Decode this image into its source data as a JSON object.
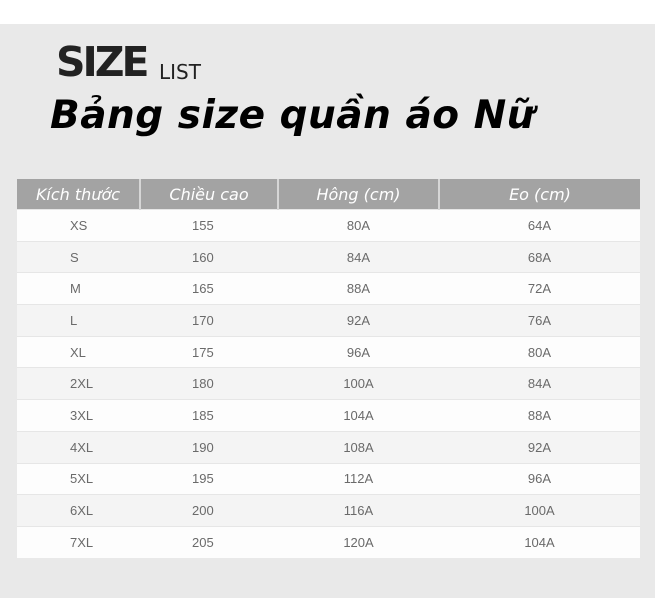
{
  "header": {
    "size_word": "SIZE",
    "list_word": "LIST",
    "title": "Bảng size quần áo Nữ"
  },
  "table": {
    "columns": [
      "Kích thước",
      "Chiều cao",
      "Hông (cm)",
      "Eo (cm)"
    ],
    "rows": [
      [
        "XS",
        "155",
        "80A",
        "64A"
      ],
      [
        "S",
        "160",
        "84A",
        "68A"
      ],
      [
        "M",
        "165",
        "88A",
        "72A"
      ],
      [
        "L",
        "170",
        "92A",
        "76A"
      ],
      [
        "XL",
        "175",
        "96A",
        "80A"
      ],
      [
        "2XL",
        "180",
        "100A",
        "84A"
      ],
      [
        "3XL",
        "185",
        "104A",
        "88A"
      ],
      [
        "4XL",
        "190",
        "108A",
        "92A"
      ],
      [
        "5XL",
        "195",
        "112A",
        "96A"
      ],
      [
        "6XL",
        "200",
        "116A",
        "100A"
      ],
      [
        "7XL",
        "205",
        "120A",
        "104A"
      ]
    ]
  },
  "colors": {
    "header_bg": "#a3a3a3",
    "panel_bg": "#e9e9e9"
  }
}
